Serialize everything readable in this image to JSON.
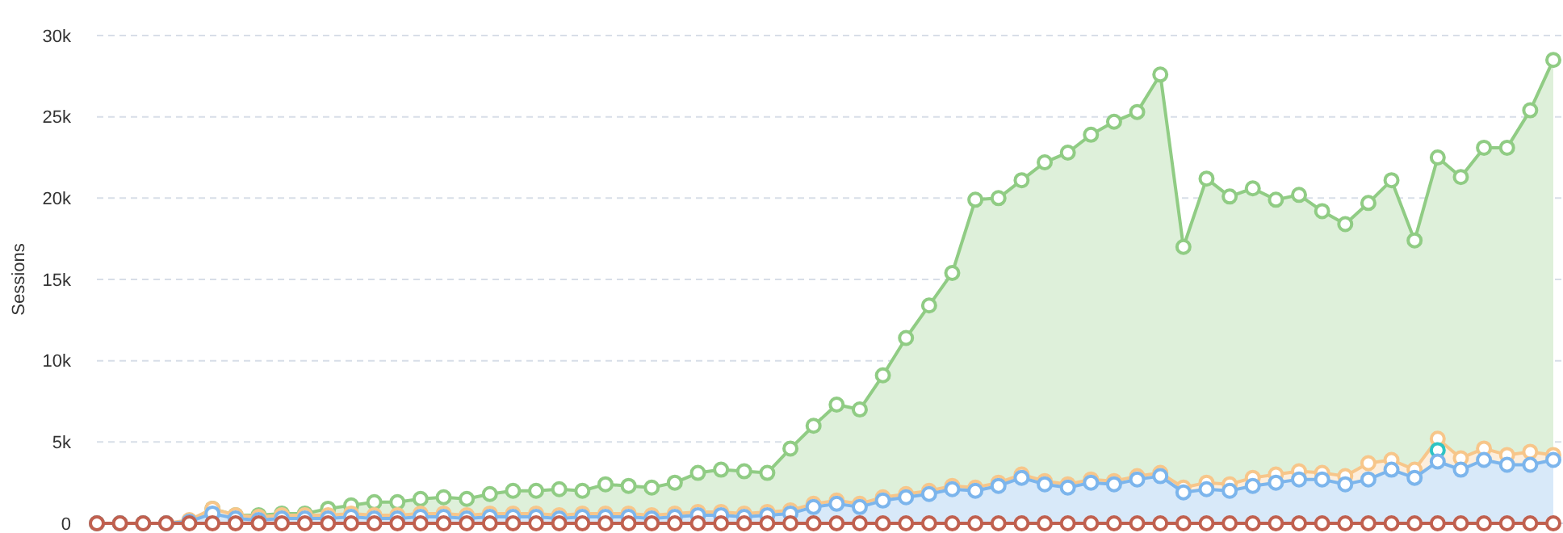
{
  "chart_data": {
    "type": "area",
    "ylabel": "Sessions",
    "categories": [
      null,
      null,
      null,
      null,
      null,
      null,
      null,
      null,
      null,
      null,
      null,
      null,
      null,
      null,
      null,
      null,
      null,
      null,
      null,
      null,
      null,
      null,
      null,
      null,
      null,
      null,
      null,
      null,
      null,
      null,
      null,
      null,
      null,
      null,
      null,
      null,
      null,
      null,
      null,
      null,
      null,
      null,
      null,
      null,
      null,
      null,
      null,
      null,
      null,
      null,
      null,
      null,
      null,
      null,
      null,
      null,
      null,
      null,
      null,
      null,
      null,
      null,
      null,
      null
    ],
    "ylim": [
      0,
      30000
    ],
    "yticks": [
      0,
      {
        "value": 5000,
        "label": "5k"
      },
      {
        "value": 10000,
        "label": "10k"
      },
      {
        "value": 15000,
        "label": "15k"
      },
      {
        "value": 20000,
        "label": "20k"
      },
      {
        "value": 25000,
        "label": "25k"
      },
      {
        "value": 30000,
        "label": "30k"
      }
    ],
    "grid": "y",
    "marker": "circle",
    "series": [
      {
        "color": "#90cc84",
        "values": [
          0,
          0,
          0,
          0,
          100,
          900,
          500,
          500,
          600,
          600,
          900,
          1100,
          1300,
          1300,
          1500,
          1600,
          1500,
          1800,
          2000,
          2000,
          2100,
          2000,
          2400,
          2300,
          2200,
          2500,
          3100,
          3300,
          3200,
          3100,
          4600,
          6000,
          7300,
          7000,
          9100,
          11400,
          13400,
          15400,
          19900,
          20000,
          21100,
          22200,
          22800,
          23900,
          24700,
          25300,
          27600,
          17000,
          21200,
          20100,
          20600,
          19900,
          20200,
          19200,
          18400,
          19700,
          21100,
          17400,
          22500,
          21300,
          23100,
          23100,
          25400,
          28500
        ]
      },
      {
        "color": "#f7c68a",
        "values": [
          0,
          0,
          0,
          0,
          200,
          900,
          500,
          400,
          500,
          500,
          500,
          600,
          500,
          500,
          600,
          600,
          500,
          600,
          600,
          600,
          500,
          600,
          600,
          600,
          500,
          600,
          700,
          700,
          600,
          700,
          800,
          1200,
          1400,
          1200,
          1600,
          1800,
          2000,
          2300,
          2200,
          2500,
          3000,
          2600,
          2400,
          2700,
          2600,
          2900,
          3100,
          2200,
          2500,
          2400,
          2800,
          3000,
          3200,
          3100,
          2900,
          3700,
          3900,
          3300,
          5200,
          4000,
          4600,
          4200,
          4400,
          4200
        ]
      },
      {
        "type": "line",
        "color": "#2ec4c4",
        "values": [
          null,
          null,
          null,
          null,
          null,
          null,
          null,
          null,
          null,
          null,
          null,
          null,
          null,
          null,
          null,
          null,
          null,
          null,
          null,
          null,
          null,
          null,
          null,
          null,
          null,
          null,
          null,
          null,
          null,
          null,
          null,
          null,
          null,
          null,
          null,
          null,
          null,
          null,
          null,
          null,
          null,
          null,
          null,
          null,
          null,
          null,
          null,
          null,
          null,
          null,
          null,
          null,
          null,
          null,
          null,
          null,
          null,
          null,
          4500,
          null,
          null,
          null,
          null,
          null
        ]
      },
      {
        "color": "#7cb5ec",
        "values": [
          0,
          0,
          0,
          0,
          100,
          600,
          300,
          200,
          300,
          300,
          300,
          400,
          300,
          300,
          400,
          400,
          300,
          400,
          400,
          400,
          300,
          400,
          400,
          400,
          300,
          400,
          500,
          500,
          400,
          500,
          600,
          1000,
          1200,
          1000,
          1400,
          1600,
          1800,
          2100,
          2000,
          2300,
          2800,
          2400,
          2200,
          2500,
          2400,
          2700,
          2900,
          1900,
          2100,
          2000,
          2300,
          2500,
          2700,
          2700,
          2400,
          2700,
          3300,
          2800,
          3800,
          3300,
          3900,
          3600,
          3600,
          3900
        ]
      },
      {
        "type": "line",
        "color": "#c0604f",
        "values": [
          0,
          0,
          0,
          0,
          0,
          0,
          0,
          0,
          0,
          0,
          0,
          0,
          0,
          0,
          0,
          0,
          0,
          0,
          0,
          0,
          0,
          0,
          0,
          0,
          0,
          0,
          0,
          0,
          0,
          0,
          0,
          0,
          0,
          0,
          0,
          0,
          0,
          0,
          0,
          0,
          0,
          0,
          0,
          0,
          0,
          0,
          0,
          0,
          0,
          0,
          0,
          0,
          0,
          0,
          0,
          0,
          0,
          0,
          0,
          0,
          0,
          0,
          0,
          0
        ]
      }
    ]
  }
}
